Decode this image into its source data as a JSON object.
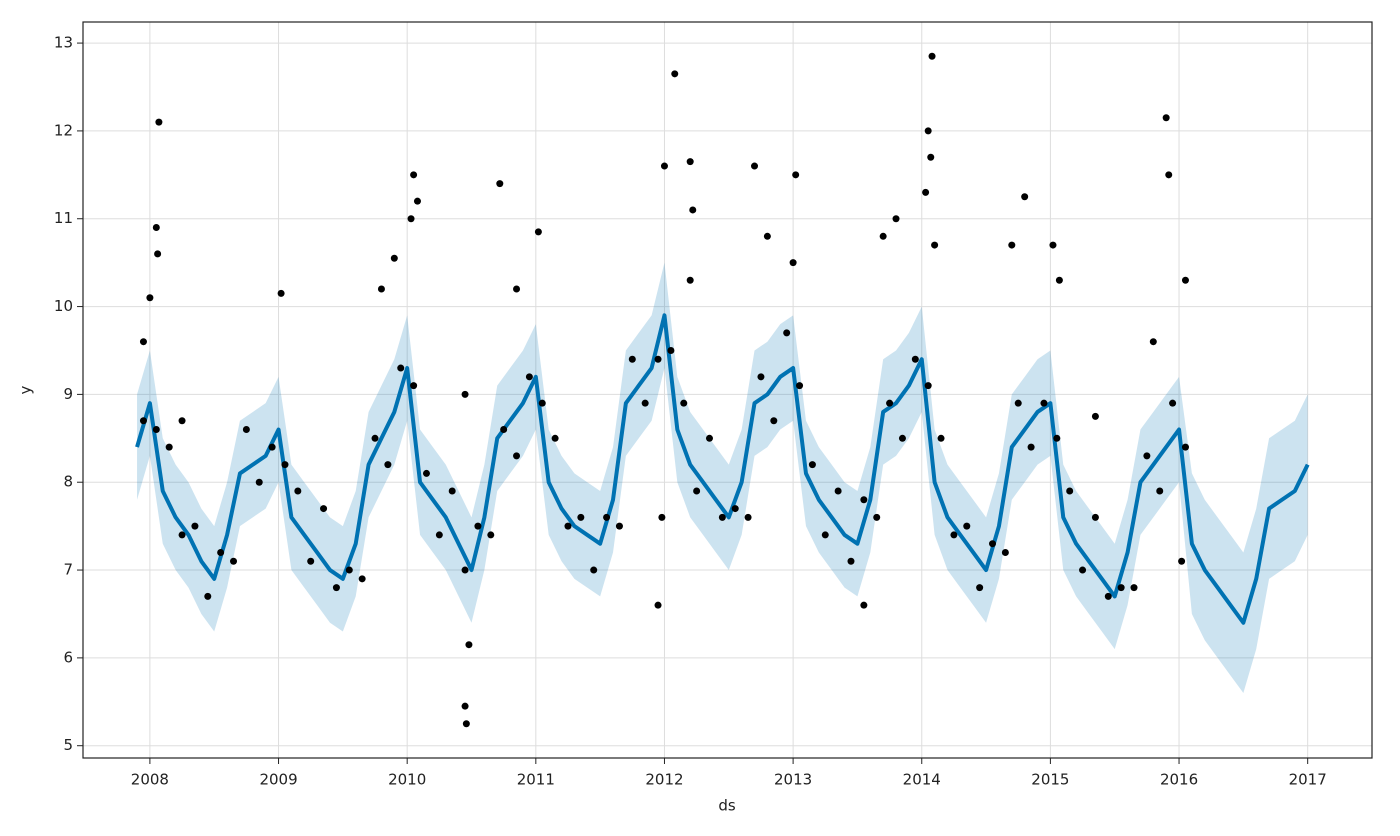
{
  "chart_data": {
    "type": "forecast",
    "xlabel": "ds",
    "ylabel": "y",
    "xlim": [
      2007.48,
      2017.5
    ],
    "ylim": [
      4.86,
      13.24
    ],
    "xticks": [
      2008,
      2009,
      2010,
      2011,
      2012,
      2013,
      2014,
      2015,
      2016,
      2017
    ],
    "yticks": [
      5,
      6,
      7,
      8,
      9,
      10,
      11,
      12,
      13
    ],
    "grid": true,
    "x": [
      2007.9,
      2008,
      2008.1,
      2008.2,
      2008.3,
      2008.4,
      2008.5,
      2008.6,
      2008.7,
      2008.8,
      2008.9,
      2009,
      2009.1,
      2009.2,
      2009.3,
      2009.4,
      2009.5,
      2009.6,
      2009.7,
      2009.8,
      2009.9,
      2010,
      2010.1,
      2010.2,
      2010.3,
      2010.4,
      2010.5,
      2010.6,
      2010.7,
      2010.8,
      2010.9,
      2011,
      2011.1,
      2011.2,
      2011.3,
      2011.4,
      2011.5,
      2011.6,
      2011.7,
      2011.8,
      2011.9,
      2012,
      2012.1,
      2012.2,
      2012.3,
      2012.4,
      2012.5,
      2012.6,
      2012.7,
      2012.8,
      2012.9,
      2013,
      2013.1,
      2013.2,
      2013.3,
      2013.4,
      2013.5,
      2013.6,
      2013.7,
      2013.8,
      2013.9,
      2014,
      2014.1,
      2014.2,
      2014.3,
      2014.4,
      2014.5,
      2014.6,
      2014.7,
      2014.8,
      2014.9,
      2015,
      2015.1,
      2015.2,
      2015.3,
      2015.4,
      2015.5,
      2015.6,
      2015.7,
      2015.8,
      2015.9,
      2016,
      2016.1,
      2016.2,
      2016.3,
      2016.4,
      2016.5,
      2016.6,
      2016.7,
      2016.8,
      2016.9,
      2017
    ],
    "band": {
      "color": "#0072B2",
      "opacity": 0.2,
      "lower": [
        7.8,
        8.3,
        7.3,
        7.0,
        6.8,
        6.5,
        6.3,
        6.8,
        7.5,
        7.6,
        7.7,
        8.0,
        7.0,
        6.8,
        6.6,
        6.4,
        6.3,
        6.7,
        7.6,
        7.9,
        8.2,
        8.7,
        7.4,
        7.2,
        7.0,
        6.7,
        6.4,
        7.0,
        7.9,
        8.1,
        8.3,
        8.6,
        7.4,
        7.1,
        6.9,
        6.8,
        6.7,
        7.2,
        8.3,
        8.5,
        8.7,
        9.3,
        8.0,
        7.6,
        7.4,
        7.2,
        7.0,
        7.4,
        8.3,
        8.4,
        8.6,
        8.7,
        7.5,
        7.2,
        7.0,
        6.8,
        6.7,
        7.2,
        8.2,
        8.3,
        8.5,
        8.8,
        7.4,
        7.0,
        6.8,
        6.6,
        6.4,
        6.9,
        7.8,
        8.0,
        8.2,
        8.3,
        7.0,
        6.7,
        6.5,
        6.3,
        6.1,
        6.6,
        7.4,
        7.6,
        7.8,
        8.0,
        6.5,
        6.2,
        6.0,
        5.8,
        5.6,
        6.1,
        6.9,
        7.0,
        7.1,
        7.4
      ],
      "upper": [
        9.0,
        9.5,
        8.5,
        8.2,
        8.0,
        7.7,
        7.5,
        8.0,
        8.7,
        8.8,
        8.9,
        9.2,
        8.2,
        8.0,
        7.8,
        7.6,
        7.5,
        7.9,
        8.8,
        9.1,
        9.4,
        9.9,
        8.6,
        8.4,
        8.2,
        7.9,
        7.6,
        8.2,
        9.1,
        9.3,
        9.5,
        9.8,
        8.6,
        8.3,
        8.1,
        8.0,
        7.9,
        8.4,
        9.5,
        9.7,
        9.9,
        10.5,
        9.2,
        8.8,
        8.6,
        8.4,
        8.2,
        8.6,
        9.5,
        9.6,
        9.8,
        9.9,
        8.7,
        8.4,
        8.2,
        8.0,
        7.9,
        8.4,
        9.4,
        9.5,
        9.7,
        10.0,
        8.6,
        8.2,
        8.0,
        7.8,
        7.6,
        8.1,
        9.0,
        9.2,
        9.4,
        9.5,
        8.2,
        7.9,
        7.7,
        7.5,
        7.3,
        7.8,
        8.6,
        8.8,
        9.0,
        9.2,
        8.1,
        7.8,
        7.6,
        7.4,
        7.2,
        7.7,
        8.5,
        8.6,
        8.7,
        9.0
      ]
    },
    "series": [
      {
        "color": "#0072B2",
        "values": [
          8.4,
          8.9,
          7.9,
          7.6,
          7.4,
          7.1,
          6.9,
          7.4,
          8.1,
          8.2,
          8.3,
          8.6,
          7.6,
          7.4,
          7.2,
          7.0,
          6.9,
          7.3,
          8.2,
          8.5,
          8.8,
          9.3,
          8.0,
          7.8,
          7.6,
          7.3,
          7.0,
          7.6,
          8.5,
          8.7,
          8.9,
          9.2,
          8.0,
          7.7,
          7.5,
          7.4,
          7.3,
          7.8,
          8.9,
          9.1,
          9.3,
          9.9,
          8.6,
          8.2,
          8.0,
          7.8,
          7.6,
          8.0,
          8.9,
          9.0,
          9.2,
          9.3,
          8.1,
          7.8,
          7.6,
          7.4,
          7.3,
          7.8,
          8.8,
          8.9,
          9.1,
          9.4,
          8.0,
          7.6,
          7.4,
          7.2,
          7.0,
          7.5,
          8.4,
          8.6,
          8.8,
          8.9,
          7.6,
          7.3,
          7.1,
          6.9,
          6.7,
          7.2,
          8.0,
          8.2,
          8.4,
          8.6,
          7.3,
          7.0,
          6.8,
          6.6,
          6.4,
          6.9,
          7.7,
          7.8,
          7.9,
          8.2
        ]
      }
    ],
    "points": {
      "color": "#000000",
      "x": [
        2007.95,
        2008.05,
        2008.15,
        2008.25,
        2008.35,
        2008.45,
        2008.55,
        2008.65,
        2008.75,
        2008.85,
        2008.95,
        2009.05,
        2009.15,
        2009.25,
        2009.35,
        2009.45,
        2009.55,
        2009.65,
        2009.75,
        2009.85,
        2009.95,
        2010.05,
        2010.15,
        2010.25,
        2010.35,
        2010.45,
        2010.55,
        2010.65,
        2010.75,
        2010.85,
        2010.95,
        2011.05,
        2011.15,
        2011.25,
        2011.35,
        2011.45,
        2011.55,
        2011.65,
        2011.75,
        2011.85,
        2011.95,
        2012.05,
        2012.15,
        2012.25,
        2012.35,
        2012.45,
        2012.55,
        2012.65,
        2012.75,
        2012.85,
        2012.95,
        2013.05,
        2013.15,
        2013.25,
        2013.35,
        2013.45,
        2013.55,
        2013.65,
        2013.75,
        2013.85,
        2013.95,
        2014.05,
        2014.15,
        2014.25,
        2014.35,
        2014.45,
        2014.55,
        2014.65,
        2014.75,
        2014.85,
        2014.95,
        2015.05,
        2015.15,
        2015.25,
        2015.35,
        2015.45,
        2015.55,
        2015.65,
        2015.75,
        2015.85,
        2015.95,
        2016.05,
        2008.07,
        2008.05,
        2008.06,
        2008.0,
        2007.95,
        2008.25,
        2009.02,
        2009.8,
        2009.9,
        2010.05,
        2010.08,
        2010.03,
        2010.45,
        2010.46,
        2010.48,
        2010.45,
        2010.72,
        2011.02,
        2010.85,
        2011.95,
        2012.08,
        2012.2,
        2012.0,
        2012.22,
        2012.2,
        2011.98,
        2012.7,
        2012.8,
        2013.02,
        2013.0,
        2013.55,
        2013.8,
        2013.7,
        2014.08,
        2014.05,
        2014.07,
        2014.03,
        2014.1,
        2014.7,
        2014.8,
        2015.02,
        2015.07,
        2015.35,
        2015.9,
        2015.92,
        2016.05,
        2015.8,
        2016.02
      ],
      "y": [
        8.7,
        8.6,
        8.4,
        7.4,
        7.5,
        6.7,
        7.2,
        7.1,
        8.6,
        8.0,
        8.4,
        8.2,
        7.9,
        7.1,
        7.7,
        6.8,
        7.0,
        6.9,
        8.5,
        8.2,
        9.3,
        9.1,
        8.1,
        7.4,
        7.9,
        7.0,
        7.5,
        7.4,
        8.6,
        8.3,
        9.2,
        8.9,
        8.5,
        7.5,
        7.6,
        7.0,
        7.6,
        7.5,
        9.4,
        8.9,
        9.4,
        9.5,
        8.9,
        7.9,
        8.5,
        7.6,
        7.7,
        7.6,
        9.2,
        8.7,
        9.7,
        9.1,
        8.2,
        7.4,
        7.9,
        7.1,
        7.8,
        7.6,
        8.9,
        8.5,
        9.4,
        9.1,
        8.5,
        7.4,
        7.5,
        6.8,
        7.3,
        7.2,
        8.9,
        8.4,
        8.9,
        8.5,
        7.9,
        7.0,
        7.6,
        6.7,
        6.8,
        6.8,
        8.3,
        7.9,
        8.9,
        8.4,
        12.1,
        10.9,
        10.6,
        10.1,
        9.6,
        8.7,
        10.15,
        10.2,
        10.55,
        11.5,
        11.2,
        11.0,
        5.45,
        5.25,
        6.15,
        9.0,
        11.4,
        10.85,
        10.2,
        6.6,
        12.65,
        11.65,
        11.6,
        11.1,
        10.3,
        7.6,
        11.6,
        10.8,
        11.5,
        10.5,
        6.6,
        11.0,
        10.8,
        12.85,
        12.0,
        11.7,
        11.3,
        10.7,
        10.7,
        11.25,
        10.7,
        10.3,
        8.75,
        12.15,
        11.5,
        10.3,
        9.6,
        7.1
      ]
    }
  }
}
